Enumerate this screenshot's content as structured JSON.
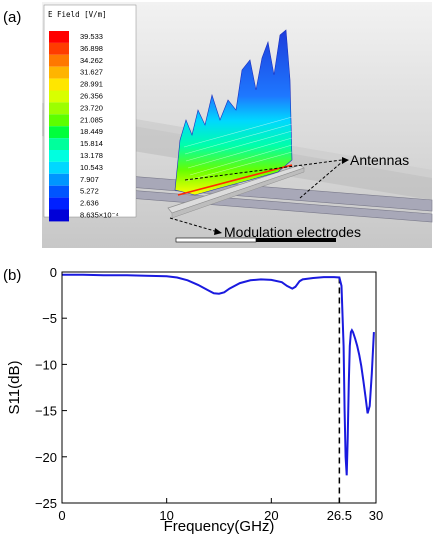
{
  "panel_a": {
    "label": "(a)",
    "legend_title": "E Field [V/m]",
    "legend_values": [
      "39.533",
      "36.898",
      "34.262",
      "31.627",
      "28.991",
      "26.356",
      "23.720",
      "21.085",
      "18.449",
      "15.814",
      "13.178",
      "10.543",
      "7.907",
      "5.272",
      "2.636",
      "8.635×10⁻⁴"
    ],
    "legend_colors": [
      "#ff0000",
      "#ff3c00",
      "#ff7800",
      "#ffb400",
      "#ffe600",
      "#d8ff00",
      "#9cff00",
      "#5cff00",
      "#00ff3c",
      "#00ff9c",
      "#00ffe0",
      "#00d8ff",
      "#0096ff",
      "#0055ff",
      "#0020ff",
      "#0000d8"
    ],
    "annotation_antennas": "Antennas",
    "annotation_electrodes": "Modulation electrodes"
  },
  "panel_b": {
    "label": "(b)"
  },
  "chart_data": {
    "type": "line",
    "xlabel": "Frequency(GHz)",
    "ylabel": "S11(dB)",
    "xlim": [
      0,
      30
    ],
    "ylim": [
      -25,
      0
    ],
    "xticks": [
      0,
      10,
      20,
      26.5,
      30
    ],
    "xtick_labels": [
      "0",
      "10",
      "20",
      "26.5",
      "30"
    ],
    "yticks": [
      0,
      -5,
      -10,
      -15,
      -20,
      -25
    ],
    "ytick_labels": [
      "0",
      "−5",
      "−10",
      "−15",
      "−20",
      "−25"
    ],
    "marker_line_x": 26.5,
    "line_color": "#1a1adf",
    "series": [
      {
        "x": [
          0,
          2,
          4,
          6,
          8,
          10,
          11,
          12,
          13,
          14,
          14.5,
          15,
          15.5,
          16,
          17,
          18,
          19,
          20,
          21,
          21.5,
          22,
          22.3,
          22.7,
          23,
          24,
          25,
          26,
          26.5,
          26.7,
          26.9,
          27.0,
          27.1,
          27.2,
          27.3,
          27.4,
          27.5,
          27.6,
          27.7,
          27.8,
          28.0,
          28.2,
          28.4,
          28.6,
          28.8,
          29.0,
          29.2,
          29.4,
          29.6,
          29.8
        ],
        "y": [
          -0.3,
          -0.3,
          -0.35,
          -0.35,
          -0.4,
          -0.45,
          -0.6,
          -0.9,
          -1.4,
          -2.0,
          -2.3,
          -2.35,
          -2.2,
          -1.8,
          -1.2,
          -0.9,
          -0.8,
          -0.85,
          -1.1,
          -1.5,
          -1.8,
          -1.6,
          -1.0,
          -0.8,
          -0.65,
          -0.55,
          -0.55,
          -0.6,
          -1.5,
          -8,
          -15,
          -20,
          -22,
          -18,
          -12,
          -8,
          -6.5,
          -6.3,
          -6.5,
          -7.2,
          -8.0,
          -9.0,
          -10.2,
          -11.8,
          -13.5,
          -15.3,
          -14.5,
          -11,
          -6.5
        ]
      }
    ]
  }
}
